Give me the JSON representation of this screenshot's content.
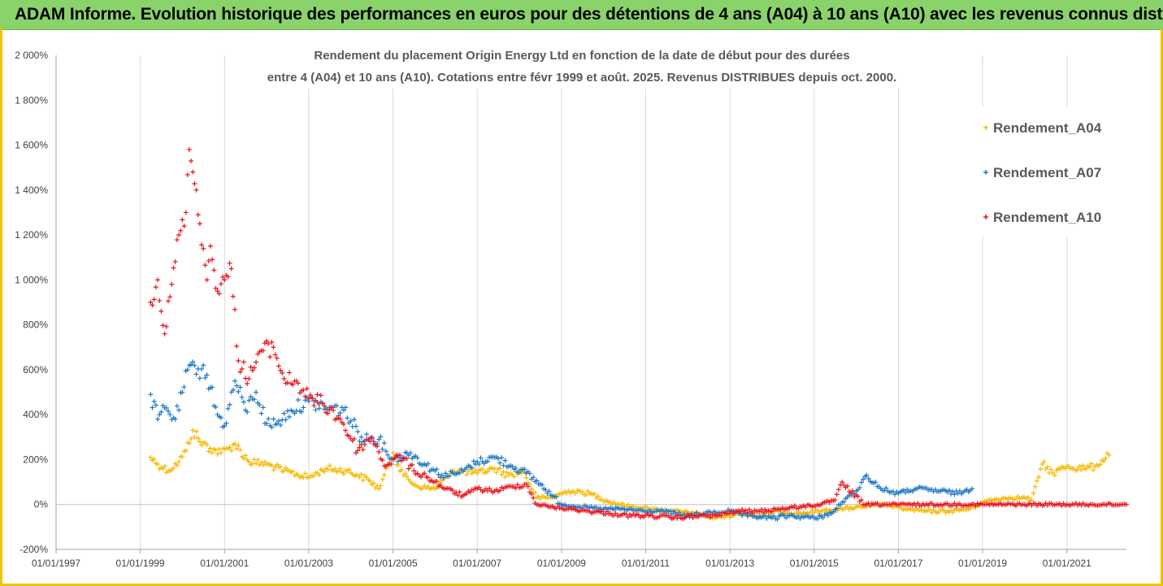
{
  "banner": {
    "text": "ADAM Informe. Evolution historique des performances en euros pour des détentions de 4 ans (A04) à 10 ans (A10) avec les revenus connus distribués"
  },
  "colors": {
    "banner_bg": "#8ad36a",
    "frame": "#f2c200",
    "A04": "#f5b800",
    "A07": "#1f77c4",
    "A10": "#e8141c"
  },
  "chart_data": {
    "type": "scatter",
    "title": [
      "Rendement du placement Origin Energy Ltd en fonction de la date de début pour des durées",
      "entre 4 (A04) et 10 ans (A10). Cotations entre févr 1999 et août. 2025. Revenus DISTRIBUES depuis oct. 2000."
    ],
    "xlabel": "",
    "ylabel": "",
    "x_range": [
      "1997-01-01",
      "2022-06-01"
    ],
    "x_ticks": [
      "01/01/1997",
      "01/01/1999",
      "01/01/2001",
      "01/01/2003",
      "01/01/2005",
      "01/01/2007",
      "01/01/2009",
      "01/01/2011",
      "01/01/2013",
      "01/01/2015",
      "01/01/2017",
      "01/01/2019",
      "01/01/2021"
    ],
    "y_range": [
      -200,
      2000
    ],
    "y_ticks": [
      "-200%",
      "0%",
      "200%",
      "400%",
      "600%",
      "800%",
      "1 000%",
      "1 200%",
      "1 400%",
      "1 600%",
      "1 800%",
      "2 000%"
    ],
    "y_unit": "%",
    "grid": "vertical",
    "legend_position": "top-right",
    "series": [
      {
        "name": "Rendement_A04",
        "color_key": "A04",
        "x": [
          "1999-04-01",
          "1999-06-01",
          "1999-09-01",
          "1999-12-01",
          "2000-02-01",
          "2000-04-01",
          "2000-06-01",
          "2000-09-01",
          "2000-12-01",
          "2001-02-01",
          "2001-04-01",
          "2001-08-01",
          "2002-01-01",
          "2002-06-01",
          "2003-01-01",
          "2003-06-01",
          "2003-12-01",
          "2004-03-01",
          "2004-06-01",
          "2004-09-01",
          "2005-01-01",
          "2005-04-01",
          "2005-08-01",
          "2006-01-01",
          "2006-06-01",
          "2007-01-01",
          "2007-06-01",
          "2007-10-01",
          "2008-02-01",
          "2008-06-01",
          "2008-10-01",
          "2009-03-01",
          "2009-09-01",
          "2010-03-01",
          "2010-09-01",
          "2011-03-01",
          "2011-09-01",
          "2012-03-01",
          "2012-09-01",
          "2013-03-01",
          "2013-09-01",
          "2014-03-01",
          "2014-09-01",
          "2015-03-01",
          "2015-09-01",
          "2016-03-01",
          "2016-09-01",
          "2017-03-01",
          "2017-09-01",
          "2018-03-01",
          "2018-09-01",
          "2019-03-01",
          "2019-09-01",
          "2020-01-01",
          "2020-03-01",
          "2020-06-01",
          "2020-09-01",
          "2021-01-01",
          "2021-06-01",
          "2021-09-01",
          "2022-01-01"
        ],
        "y": [
          210,
          180,
          150,
          190,
          240,
          330,
          280,
          250,
          230,
          250,
          270,
          190,
          180,
          150,
          120,
          160,
          150,
          130,
          110,
          70,
          230,
          130,
          80,
          70,
          150,
          140,
          160,
          130,
          150,
          30,
          30,
          60,
          50,
          10,
          -10,
          -20,
          -30,
          -40,
          -60,
          -40,
          -50,
          -30,
          -40,
          -30,
          -20,
          -10,
          0,
          -20,
          -30,
          -30,
          -20,
          20,
          30,
          30,
          20,
          180,
          140,
          170,
          160,
          170,
          220
        ]
      },
      {
        "name": "Rendement_A07",
        "color_key": "A07",
        "x": [
          "1999-04-01",
          "1999-06-01",
          "1999-08-01",
          "1999-11-01",
          "2000-01-01",
          "2000-03-01",
          "2000-05-01",
          "2000-07-01",
          "2000-09-01",
          "2000-11-01",
          "2001-01-01",
          "2001-04-01",
          "2001-07-01",
          "2001-10-01",
          "2002-01-01",
          "2002-04-01",
          "2002-08-01",
          "2003-01-01",
          "2003-06-01",
          "2003-11-01",
          "2004-04-01",
          "2004-09-01",
          "2005-01-01",
          "2005-06-01",
          "2005-10-01",
          "2006-03-01",
          "2006-08-01",
          "2007-01-01",
          "2007-06-01",
          "2007-11-01",
          "2008-03-01",
          "2008-07-01",
          "2009-01-01",
          "2009-06-01",
          "2010-01-01",
          "2010-06-01",
          "2011-01-01",
          "2011-06-01",
          "2012-01-01",
          "2012-06-01",
          "2013-01-01",
          "2013-06-01",
          "2014-01-01",
          "2014-06-01",
          "2015-01-01",
          "2015-06-01",
          "2015-09-01",
          "2016-01-01",
          "2016-04-01",
          "2016-08-01",
          "2017-01-01",
          "2017-06-01",
          "2018-01-01",
          "2018-06-01",
          "2018-10-01"
        ],
        "y": [
          490,
          380,
          430,
          380,
          500,
          620,
          580,
          620,
          520,
          400,
          350,
          550,
          420,
          500,
          360,
          360,
          420,
          460,
          430,
          420,
          300,
          290,
          200,
          230,
          180,
          130,
          140,
          190,
          210,
          170,
          140,
          90,
          0,
          -10,
          -20,
          -20,
          -30,
          -30,
          -50,
          -40,
          -30,
          -50,
          -60,
          -50,
          -60,
          -40,
          10,
          60,
          130,
          70,
          50,
          70,
          60,
          50,
          70
        ]
      },
      {
        "name": "Rendement_A10",
        "color_key": "A10",
        "x": [
          "1999-04-01",
          "1999-06-01",
          "1999-08-01",
          "1999-10-01",
          "1999-12-01",
          "2000-02-01",
          "2000-03-01",
          "2000-05-01",
          "2000-06-01",
          "2000-08-01",
          "2000-09-01",
          "2000-11-01",
          "2001-01-01",
          "2001-03-01",
          "2001-05-01",
          "2001-08-01",
          "2001-11-01",
          "2002-03-01",
          "2002-06-01",
          "2002-10-01",
          "2003-01-01",
          "2003-05-01",
          "2003-10-01",
          "2004-03-01",
          "2004-07-01",
          "2004-11-01",
          "2005-03-01",
          "2005-07-01",
          "2005-11-01",
          "2006-04-01",
          "2006-09-01",
          "2007-01-01",
          "2007-06-01",
          "2007-11-01",
          "2008-03-01",
          "2008-06-01",
          "2008-10-01",
          "2009-03-01",
          "2009-09-01",
          "2010-03-01",
          "2010-09-01",
          "2011-03-01",
          "2011-09-01",
          "2012-03-01",
          "2012-09-01",
          "2013-03-01",
          "2013-09-01",
          "2014-03-01",
          "2014-09-01",
          "2015-03-01",
          "2015-07-01",
          "2015-09-01",
          "2016-03-01",
          "2017-01-01",
          "2018-01-01",
          "2019-01-01",
          "2020-01-01",
          "2021-01-01",
          "2022-06-01"
        ],
        "y": [
          900,
          1000,
          760,
          980,
          1200,
          1300,
          1580,
          1400,
          1250,
          1000,
          1150,
          950,
          1000,
          1050,
          640,
          560,
          680,
          700,
          560,
          540,
          470,
          450,
          380,
          240,
          300,
          170,
          220,
          150,
          120,
          70,
          40,
          70,
          60,
          80,
          90,
          0,
          -10,
          -20,
          -30,
          -40,
          -50,
          -50,
          -60,
          -50,
          -50,
          -30,
          -30,
          -20,
          -10,
          0,
          20,
          100,
          0,
          0,
          0,
          0,
          0,
          0,
          0
        ]
      }
    ]
  }
}
